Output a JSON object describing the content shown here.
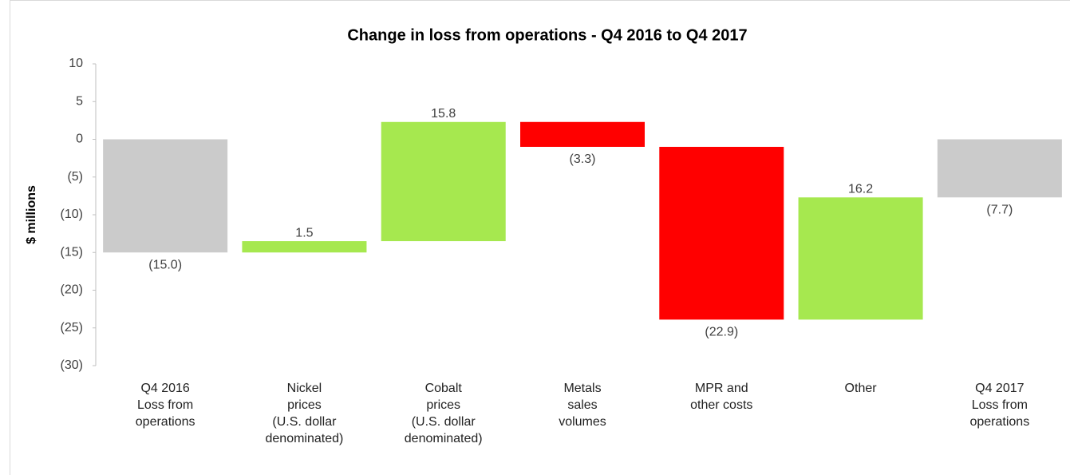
{
  "chart_data": {
    "type": "waterfall",
    "title": "Change in loss from operations  - Q4 2016 to Q4 2017",
    "y_label": "$ millions",
    "categories": [
      "Q4 2016\nLoss from\noperations",
      "Nickel\nprices\n(U.S. dollar\ndenominated)",
      "Cobalt\nprices\n(U.S. dollar\ndenominated)",
      "Metals\nsales\nvolumes",
      "MPR and\nother costs",
      "Other",
      "Q4 2017\nLoss from\noperations"
    ],
    "values": [
      -15.0,
      1.5,
      15.8,
      -3.3,
      -22.9,
      16.2,
      -7.7
    ],
    "value_labels": [
      "(15.0)",
      "1.5",
      "15.8",
      "(3.3)",
      "(22.9)",
      "16.2",
      "(7.7)"
    ],
    "is_total": [
      true,
      false,
      false,
      false,
      false,
      false,
      true
    ],
    "colors": [
      "#cbcbcb",
      "#a6e84f",
      "#a6e84f",
      "#ff0000",
      "#ff0000",
      "#a6e84f",
      "#cbcbcb"
    ],
    "ylim": [
      -30,
      10
    ],
    "yticks": [
      10,
      5,
      0,
      {
        "value": -5,
        "label": "(5)"
      },
      {
        "value": -10,
        "label": "(10)"
      },
      {
        "value": -15,
        "label": "(15)"
      },
      {
        "value": -20,
        "label": "(20)"
      },
      {
        "value": -25,
        "label": "(25)"
      },
      {
        "value": -30,
        "label": "(30)"
      }
    ],
    "grid": false
  }
}
